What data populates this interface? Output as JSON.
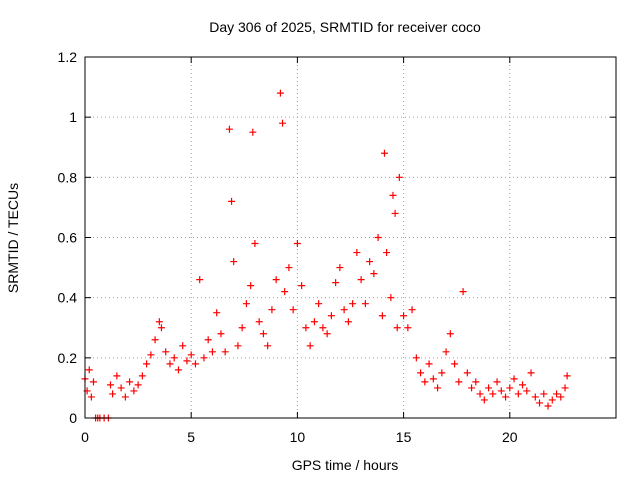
{
  "chart_data": {
    "type": "scatter",
    "title": "Day 306 of 2025, SRMTID for receiver coco",
    "xlabel": "GPS time / hours",
    "ylabel": "SRMTID / TECUs",
    "xlim": [
      0,
      25
    ],
    "ylim": [
      0,
      1.2
    ],
    "grid": true,
    "marker": "+",
    "color": "#ff0000",
    "x_ticks": [
      0,
      5,
      10,
      15,
      20
    ],
    "x_tick_labels": [
      "0",
      "5",
      "10",
      "15",
      "20"
    ],
    "y_ticks": [
      0,
      0.2,
      0.4,
      0.6,
      0.8,
      1.0,
      1.2
    ],
    "y_tick_labels": [
      "0",
      "0.2",
      "0.4",
      "0.6",
      "0.8",
      "1",
      "1.2"
    ],
    "series": [
      {
        "name": "SRMTID",
        "x": [
          0.0,
          0.1,
          0.2,
          0.3,
          0.4,
          0.5,
          0.6,
          0.7,
          0.9,
          1.1,
          1.2,
          1.3,
          1.5,
          1.7,
          1.9,
          2.1,
          2.3,
          2.5,
          2.7,
          2.9,
          3.1,
          3.3,
          3.5,
          3.6,
          3.8,
          4.0,
          4.2,
          4.4,
          4.6,
          4.8,
          5.0,
          5.2,
          5.4,
          5.6,
          5.8,
          6.0,
          6.2,
          6.4,
          6.6,
          6.8,
          6.9,
          7.0,
          7.2,
          7.4,
          7.6,
          7.8,
          7.9,
          8.0,
          8.2,
          8.4,
          8.6,
          8.8,
          9.0,
          9.2,
          9.3,
          9.4,
          9.6,
          9.8,
          10.0,
          10.2,
          10.4,
          10.6,
          10.8,
          11.0,
          11.2,
          11.4,
          11.6,
          11.8,
          12.0,
          12.2,
          12.4,
          12.6,
          12.8,
          13.0,
          13.2,
          13.4,
          13.6,
          13.8,
          14.0,
          14.1,
          14.2,
          14.4,
          14.5,
          14.6,
          14.7,
          14.8,
          15.0,
          15.2,
          15.4,
          15.6,
          15.8,
          16.0,
          16.2,
          16.4,
          16.6,
          16.8,
          17.0,
          17.2,
          17.4,
          17.6,
          17.8,
          18.0,
          18.2,
          18.4,
          18.6,
          18.8,
          19.0,
          19.2,
          19.4,
          19.6,
          19.8,
          20.0,
          20.2,
          20.4,
          20.6,
          20.8,
          21.0,
          21.2,
          21.4,
          21.6,
          21.8,
          22.0,
          22.2,
          22.4,
          22.6,
          22.7
        ],
        "y": [
          0.13,
          0.09,
          0.16,
          0.07,
          0.12,
          0.0,
          0.0,
          0.0,
          0.0,
          0.0,
          0.11,
          0.08,
          0.14,
          0.1,
          0.07,
          0.12,
          0.09,
          0.11,
          0.14,
          0.18,
          0.21,
          0.26,
          0.32,
          0.3,
          0.22,
          0.18,
          0.2,
          0.16,
          0.24,
          0.19,
          0.21,
          0.18,
          0.46,
          0.2,
          0.26,
          0.22,
          0.35,
          0.28,
          0.22,
          0.96,
          0.72,
          0.52,
          0.24,
          0.3,
          0.38,
          0.44,
          0.95,
          0.58,
          0.32,
          0.28,
          0.24,
          0.36,
          0.46,
          1.08,
          0.98,
          0.42,
          0.5,
          0.36,
          0.58,
          0.44,
          0.3,
          0.24,
          0.32,
          0.38,
          0.3,
          0.28,
          0.34,
          0.45,
          0.5,
          0.36,
          0.32,
          0.38,
          0.55,
          0.46,
          0.38,
          0.52,
          0.48,
          0.6,
          0.34,
          0.88,
          0.55,
          0.4,
          0.74,
          0.68,
          0.3,
          0.8,
          0.34,
          0.3,
          0.36,
          0.2,
          0.15,
          0.12,
          0.18,
          0.13,
          0.1,
          0.15,
          0.22,
          0.28,
          0.18,
          0.12,
          0.42,
          0.15,
          0.1,
          0.12,
          0.08,
          0.06,
          0.1,
          0.08,
          0.12,
          0.09,
          0.07,
          0.1,
          0.13,
          0.08,
          0.11,
          0.09,
          0.15,
          0.07,
          0.05,
          0.08,
          0.04,
          0.06,
          0.08,
          0.07,
          0.1,
          0.14
        ]
      }
    ]
  }
}
